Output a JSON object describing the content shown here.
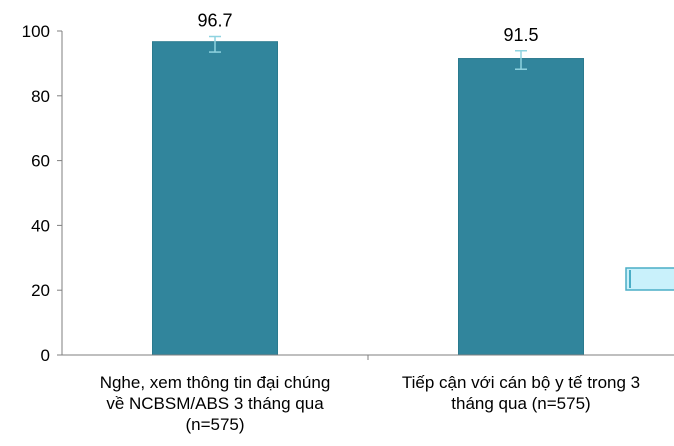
{
  "chart_data": {
    "type": "bar",
    "categories": [
      [
        "Nghe, xem thông tin đại chúng",
        "về NCBSM/ABS 3 tháng qua",
        "(n=575)"
      ],
      [
        "Tiếp cận với cán bộ y tế trong 3",
        "tháng qua (n=575)"
      ]
    ],
    "values": [
      96.7,
      91.5
    ],
    "data_labels": [
      "96.7",
      "91.5"
    ],
    "error_bars": [
      {
        "low": 93.5,
        "high": 98.3
      },
      {
        "low": 88.2,
        "high": 93.9
      }
    ],
    "ylim": [
      0,
      100
    ],
    "yticks": [
      0,
      20,
      40,
      60,
      80,
      100
    ],
    "ytick_labels": [
      "0",
      "20",
      "40",
      "60",
      "80",
      "100"
    ],
    "title": "",
    "xlabel": "",
    "ylabel": "",
    "grid": false,
    "legend": "none",
    "colors": {
      "bar": "#31859c",
      "bar_edge": "#2a7a8e",
      "error_bar": "#8fd3e0",
      "axis": "#7f7f7f",
      "decoration_fill": "#c9f1fb",
      "decoration_edge": "#4aaec6"
    }
  }
}
